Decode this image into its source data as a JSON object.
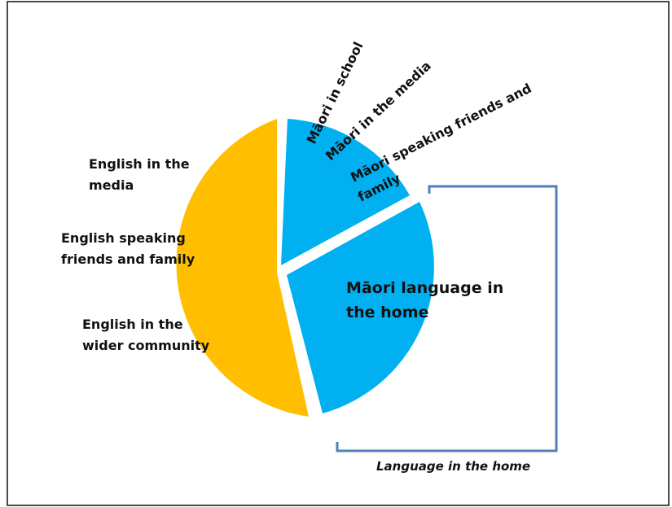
{
  "colors": {
    "english": "#ffbf00",
    "maori": "#00b0f0",
    "bracket": "#4f81bd",
    "border": "#111111"
  },
  "english_labels": [
    [
      "English  in the",
      "media"
    ],
    [
      "English  speaking",
      "friends and family"
    ],
    [
      "English  in the",
      "wider community"
    ]
  ],
  "maori_rotated_labels": [
    "Māori in school",
    "Māori in the media",
    [
      "Māori speaking friends and",
      "family"
    ]
  ],
  "home_label": [
    "Māori language in",
    "the home"
  ],
  "bracket_caption": "Language in the home"
}
